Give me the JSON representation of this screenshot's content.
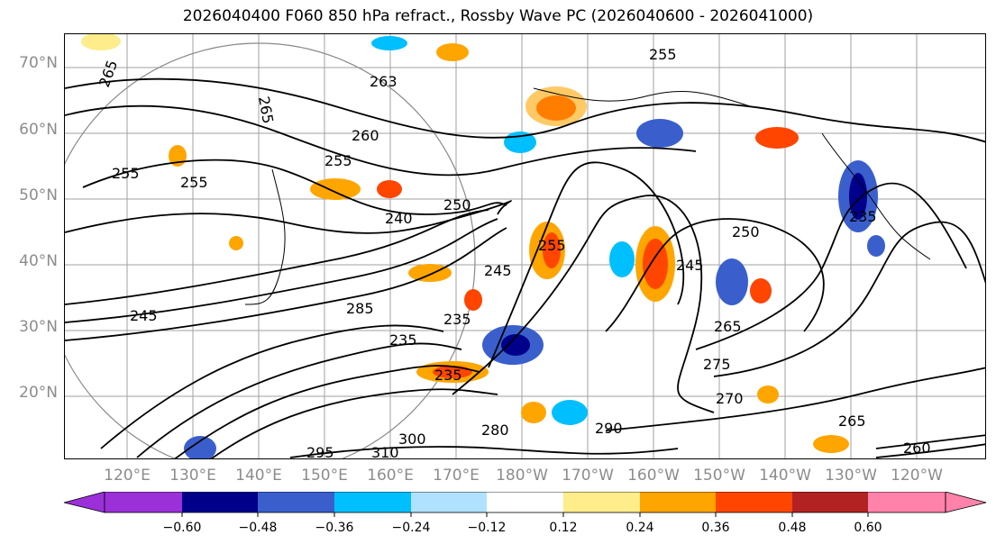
{
  "title": "2026040400 F060 850 hPa refract., Rossby Wave PC (2026040600 - 2026041000)",
  "lat_labels": [
    "70°N",
    "60°N",
    "50°N",
    "40°N",
    "30°N",
    "20°N"
  ],
  "lon_labels": [
    "120°E",
    "130°E",
    "140°E",
    "150°E",
    "160°E",
    "170°E",
    "180°W",
    "170°W",
    "160°W",
    "150°W",
    "140°W",
    "130°W",
    "120°W"
  ],
  "colorbar": {
    "ticks": [
      "−0.60",
      "−0.48",
      "−0.36",
      "−0.24",
      "−0.12",
      "0.12",
      "0.24",
      "0.36",
      "0.48",
      "0.60"
    ],
    "colors": [
      "#9b30d9",
      "#00008b",
      "#3a5fcd",
      "#00bfff",
      "#b0e2ff",
      "#ffffff",
      "#ffec8b",
      "#ffa500",
      "#ff4500",
      "#b22222",
      "#ff82ab"
    ]
  },
  "contour_labels": [
    "265",
    "265",
    "263",
    "255",
    "260",
    "255",
    "255",
    "255",
    "240",
    "250",
    "245",
    "235",
    "245",
    "235",
    "235",
    "250",
    "255",
    "245",
    "265",
    "275",
    "270",
    "290",
    "295",
    "310",
    "300",
    "285",
    "280",
    "260",
    "265",
    "235"
  ]
}
